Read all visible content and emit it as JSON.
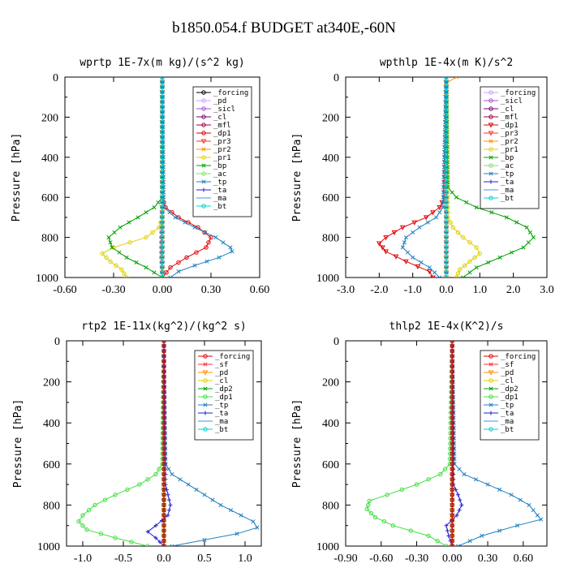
{
  "figure_title": "b1850.054.f  BUDGET at340E,-60N",
  "chart_data": [
    {
      "type": "line",
      "title": "wprtp   1E-7x(m kg)/(s^2 kg)",
      "ylabel": "Pressure [hPa]",
      "xlim": [
        -0.6,
        0.6
      ],
      "ylim": [
        1000,
        0
      ],
      "xticks": [
        "-0.60",
        "-0.30",
        "0.00",
        "0.30",
        "0.60"
      ],
      "xtick_values": [
        -0.6,
        -0.3,
        0.0,
        0.3,
        0.6
      ],
      "yticks": [
        "0",
        "200",
        "400",
        "600",
        "800",
        "1000"
      ],
      "legend": [
        "_forcing",
        "_pd",
        "_sicl",
        "_cl",
        "_mfl",
        "_dp1",
        "_pr3",
        "_pr2",
        "_pr1",
        "_bp",
        "_ac",
        "_tp",
        "_ta",
        "_ma",
        "_bt"
      ],
      "series": [
        {
          "name": "_forcing",
          "color": "#000000",
          "marker": "o",
          "p": [
            0,
            1000
          ],
          "x": [
            0,
            0
          ]
        },
        {
          "name": "_pd",
          "color": "#c8a0ff",
          "marker": "o",
          "p": [
            0,
            1000
          ],
          "x": [
            0,
            0
          ]
        },
        {
          "name": "_sicl",
          "color": "#a050d0",
          "marker": "o",
          "p": [
            0,
            600,
            700,
            800,
            900,
            1000
          ],
          "x": [
            0,
            0,
            -0.003,
            -0.005,
            -0.005,
            0
          ]
        },
        {
          "name": "_cl",
          "color": "#7a0070",
          "marker": "o",
          "p": [
            0,
            1000
          ],
          "x": [
            0,
            0
          ]
        },
        {
          "name": "_mfl",
          "color": "#a00040",
          "marker": "o",
          "p": [
            0,
            1000
          ],
          "x": [
            0,
            0
          ]
        },
        {
          "name": "_dp1",
          "color": "#e00000",
          "marker": "o",
          "p": [
            0,
            600,
            650,
            700,
            750,
            800,
            850,
            900,
            950,
            1000
          ],
          "x": [
            0,
            0,
            0.02,
            0.1,
            0.22,
            0.3,
            0.27,
            0.15,
            0.05,
            0.0
          ]
        },
        {
          "name": "_pr3",
          "color": "#ff3030",
          "marker": "v",
          "p": [
            0,
            1000
          ],
          "x": [
            0,
            0
          ]
        },
        {
          "name": "_pr2",
          "color": "#ff9000",
          "marker": "x",
          "p": [
            0,
            1000
          ],
          "x": [
            0,
            0
          ]
        },
        {
          "name": "_pr1",
          "color": "#e0d000",
          "marker": "o",
          "p": [
            0,
            700,
            750,
            800,
            850,
            880,
            920,
            960,
            1000
          ],
          "x": [
            0,
            0,
            -0.02,
            -0.1,
            -0.3,
            -0.37,
            -0.32,
            -0.25,
            -0.22
          ]
        },
        {
          "name": "_bp",
          "color": "#00a000",
          "marker": "x",
          "p": [
            0,
            600,
            650,
            700,
            750,
            800,
            850,
            900,
            950,
            1000
          ],
          "x": [
            0,
            0,
            -0.05,
            -0.15,
            -0.26,
            -0.33,
            -0.31,
            -0.22,
            -0.1,
            0.0
          ]
        },
        {
          "name": "_ac",
          "color": "#80e060",
          "marker": "o",
          "p": [
            0,
            1000
          ],
          "x": [
            0,
            0
          ]
        },
        {
          "name": "_tp",
          "color": "#2080c0",
          "marker": "x",
          "p": [
            0,
            650,
            700,
            750,
            800,
            850,
            870,
            900,
            940,
            970,
            1000
          ],
          "x": [
            0,
            0.01,
            0.08,
            0.2,
            0.33,
            0.42,
            0.43,
            0.35,
            0.2,
            0.1,
            0.05
          ]
        },
        {
          "name": "_ta",
          "color": "#2020d0",
          "marker": "+",
          "p": [
            0,
            1000
          ],
          "x": [
            0,
            0
          ]
        },
        {
          "name": "_ma",
          "color": "#4090ff",
          "marker": "-",
          "p": [
            0,
            1000
          ],
          "x": [
            0,
            0
          ]
        },
        {
          "name": "_bt",
          "color": "#00d0d0",
          "marker": "o",
          "p": [
            0,
            1000
          ],
          "x": [
            0,
            0
          ]
        }
      ]
    },
    {
      "type": "line",
      "title": "wpthlp   1E-4x(m K)/s^2",
      "ylabel": "Pressure [hPa]",
      "xlim": [
        -3.0,
        3.0
      ],
      "ylim": [
        1000,
        0
      ],
      "xticks": [
        "-3.0",
        "-2.0",
        "-1.0",
        "0.0",
        "1.0",
        "2.0",
        "3.0"
      ],
      "xtick_values": [
        -3,
        -2,
        -1,
        0,
        1,
        2,
        3
      ],
      "yticks": [
        "0",
        "200",
        "400",
        "600",
        "800",
        "1000"
      ],
      "legend": [
        "_forcing",
        "_sicl",
        "_cl",
        "_mfl",
        "_dp1",
        "_pr3",
        "_pr2",
        "_pr1",
        "_bp",
        "_ac",
        "_tp",
        "_ta",
        "_ma",
        "_bt"
      ],
      "series": [
        {
          "name": "_forcing",
          "color": "#c8a0ff",
          "marker": "o",
          "p": [
            0,
            1000
          ],
          "x": [
            0,
            0
          ]
        },
        {
          "name": "_sicl",
          "color": "#a050d0",
          "marker": "o",
          "p": [
            0,
            1000
          ],
          "x": [
            0,
            0
          ]
        },
        {
          "name": "_cl",
          "color": "#7a0070",
          "marker": "o",
          "p": [
            0,
            1000
          ],
          "x": [
            0,
            0
          ]
        },
        {
          "name": "_mfl",
          "color": "#a00040",
          "marker": "o",
          "p": [
            0,
            1000
          ],
          "x": [
            0,
            0
          ]
        },
        {
          "name": "_dp1",
          "color": "#e00000",
          "marker": "v",
          "p": [
            0,
            600,
            650,
            700,
            750,
            800,
            830,
            870,
            920,
            970,
            1000
          ],
          "x": [
            0,
            -0.05,
            -0.2,
            -0.6,
            -1.3,
            -1.8,
            -2.0,
            -1.8,
            -1.2,
            -0.5,
            -0.4
          ]
        },
        {
          "name": "_pr3",
          "color": "#ff3030",
          "marker": "v",
          "p": [
            0,
            1000
          ],
          "x": [
            0,
            0
          ]
        },
        {
          "name": "_pr2",
          "color": "#ff9000",
          "marker": "x",
          "p": [
            0,
            30,
            1000
          ],
          "x": [
            0.3,
            0,
            0
          ]
        },
        {
          "name": "_pr1",
          "color": "#e0d000",
          "marker": "o",
          "p": [
            0,
            700,
            750,
            800,
            850,
            880,
            920,
            960,
            1000
          ],
          "x": [
            0,
            0.05,
            0.2,
            0.5,
            0.9,
            1.0,
            0.7,
            0.4,
            0.3
          ]
        },
        {
          "name": "_bp",
          "color": "#00a000",
          "marker": "x",
          "p": [
            0,
            550,
            600,
            650,
            700,
            750,
            800,
            850,
            900,
            950,
            1000
          ],
          "x": [
            0,
            0.05,
            0.3,
            0.9,
            1.8,
            2.4,
            2.6,
            2.3,
            1.6,
            0.9,
            0.5
          ]
        },
        {
          "name": "_ac",
          "color": "#80e060",
          "marker": "o",
          "p": [
            0,
            1000
          ],
          "x": [
            0,
            0
          ]
        },
        {
          "name": "_tp",
          "color": "#2080c0",
          "marker": "x",
          "p": [
            0,
            650,
            700,
            750,
            800,
            850,
            900,
            950,
            1000
          ],
          "x": [
            0,
            -0.1,
            -0.3,
            -0.8,
            -1.2,
            -1.3,
            -1.0,
            -0.5,
            -0.2
          ]
        },
        {
          "name": "_ta",
          "color": "#2020d0",
          "marker": "+",
          "p": [
            0,
            1000
          ],
          "x": [
            0,
            0
          ]
        },
        {
          "name": "_ma",
          "color": "#4090ff",
          "marker": "-",
          "p": [
            0,
            1000
          ],
          "x": [
            0,
            0
          ]
        },
        {
          "name": "_bt",
          "color": "#00d0d0",
          "marker": "o",
          "p": [
            0,
            1000
          ],
          "x": [
            0,
            0
          ]
        }
      ]
    },
    {
      "type": "line",
      "title": "rtp2   1E-11x(kg^2)/(kg^2 s)",
      "ylabel": "Pressure [hPa]",
      "xlim": [
        -1.2,
        1.2
      ],
      "ylim": [
        1000,
        0
      ],
      "xticks": [
        "-1.0",
        "-0.5",
        "0.0",
        "0.5",
        "1.0"
      ],
      "xtick_values": [
        -1.0,
        -0.5,
        0.0,
        0.5,
        1.0
      ],
      "yticks": [
        "0",
        "200",
        "400",
        "600",
        "800",
        "1000"
      ],
      "legend": [
        "_forcing",
        "_sf",
        "_pd",
        "_cl",
        "_dp2",
        "_dp1",
        "_tp",
        "_ta",
        "_ma",
        "_bt"
      ],
      "series": [
        {
          "name": "_sf",
          "color": "#ff3030",
          "marker": "x",
          "p": [
            0,
            1000
          ],
          "x": [
            0,
            0
          ]
        },
        {
          "name": "_pd",
          "color": "#ff9000",
          "marker": "v",
          "p": [
            0,
            1000
          ],
          "x": [
            0,
            0
          ]
        },
        {
          "name": "_cl",
          "color": "#e0d000",
          "marker": "o",
          "p": [
            0,
            1000
          ],
          "x": [
            0,
            0
          ]
        },
        {
          "name": "_dp2",
          "color": "#00a000",
          "marker": "x",
          "p": [
            0,
            1000
          ],
          "x": [
            0,
            0
          ]
        },
        {
          "name": "_dp1",
          "color": "#40e040",
          "marker": "o",
          "p": [
            0,
            600,
            650,
            700,
            750,
            800,
            850,
            880,
            920,
            960,
            1000
          ],
          "x": [
            0,
            -0.02,
            -0.1,
            -0.3,
            -0.6,
            -0.85,
            -1.0,
            -1.05,
            -0.95,
            -0.6,
            -0.2
          ]
        },
        {
          "name": "_tp",
          "color": "#2080c0",
          "marker": "x",
          "p": [
            0,
            600,
            650,
            700,
            750,
            800,
            850,
            880,
            910,
            940,
            970,
            1000
          ],
          "x": [
            0,
            0.02,
            0.1,
            0.3,
            0.5,
            0.7,
            0.95,
            1.1,
            1.15,
            0.9,
            0.5,
            0.1
          ]
        },
        {
          "name": "_ta",
          "color": "#2020d0",
          "marker": "+",
          "p": [
            0,
            700,
            750,
            800,
            850,
            900,
            930,
            960,
            1000
          ],
          "x": [
            0,
            0.02,
            0.05,
            0.08,
            0.05,
            -0.1,
            -0.2,
            -0.1,
            0
          ]
        },
        {
          "name": "_ma",
          "color": "#4090ff",
          "marker": "-",
          "p": [
            0,
            1000
          ],
          "x": [
            0,
            0
          ]
        },
        {
          "name": "_bt",
          "color": "#00d0d0",
          "marker": "o",
          "p": [
            0,
            1000
          ],
          "x": [
            0,
            0
          ]
        },
        {
          "name": "_forcing",
          "color": "#e00000",
          "marker": "o",
          "p": [
            0,
            1000
          ],
          "x": [
            0,
            0
          ]
        }
      ]
    },
    {
      "type": "line",
      "title": "thlp2   1E-4x(K^2)/s",
      "ylabel": "Pressure [hPa]",
      "xlim": [
        -0.9,
        0.8
      ],
      "ylim": [
        1000,
        0
      ],
      "xticks": [
        "-0.90",
        "-0.60",
        "-0.30",
        "0.00",
        "0.30",
        "0.60"
      ],
      "xtick_values": [
        -0.9,
        -0.6,
        -0.3,
        0.0,
        0.3,
        0.6
      ],
      "yticks": [
        "0",
        "200",
        "400",
        "600",
        "800",
        "1000"
      ],
      "legend": [
        "_forcing",
        "_sf",
        "_pd",
        "_cl",
        "_dp2",
        "_dp1",
        "_tp",
        "_ta",
        "_ma",
        "_bt"
      ],
      "series": [
        {
          "name": "_sf",
          "color": "#ff3030",
          "marker": "x",
          "p": [
            0,
            1000
          ],
          "x": [
            0,
            0
          ]
        },
        {
          "name": "_pd",
          "color": "#ff9000",
          "marker": "v",
          "p": [
            0,
            1000
          ],
          "x": [
            0,
            0
          ]
        },
        {
          "name": "_cl",
          "color": "#e0d000",
          "marker": "o",
          "p": [
            0,
            1000
          ],
          "x": [
            0,
            0
          ]
        },
        {
          "name": "_dp2",
          "color": "#00a000",
          "marker": "x",
          "p": [
            0,
            1000
          ],
          "x": [
            0,
            0
          ]
        },
        {
          "name": "_dp1",
          "color": "#40e040",
          "marker": "o",
          "p": [
            0,
            600,
            650,
            700,
            750,
            780,
            820,
            860,
            900,
            950,
            1000
          ],
          "x": [
            0,
            -0.02,
            -0.1,
            -0.3,
            -0.55,
            -0.7,
            -0.72,
            -0.65,
            -0.5,
            -0.2,
            -0.05
          ]
        },
        {
          "name": "_tp",
          "color": "#2080c0",
          "marker": "x",
          "p": [
            0,
            600,
            650,
            700,
            750,
            800,
            850,
            870,
            900,
            950,
            1000
          ],
          "x": [
            0,
            0.02,
            0.1,
            0.3,
            0.5,
            0.65,
            0.72,
            0.75,
            0.55,
            0.25,
            0.05
          ]
        },
        {
          "name": "_ta",
          "color": "#2020d0",
          "marker": "+",
          "p": [
            0,
            700,
            750,
            800,
            850,
            900,
            950,
            1000
          ],
          "x": [
            0,
            0.01,
            0.05,
            0.08,
            0.04,
            -0.05,
            -0.03,
            0
          ]
        },
        {
          "name": "_ma",
          "color": "#4090ff",
          "marker": "-",
          "p": [
            0,
            1000
          ],
          "x": [
            0,
            0
          ]
        },
        {
          "name": "_bt",
          "color": "#00d0d0",
          "marker": "o",
          "p": [
            0,
            1000
          ],
          "x": [
            0,
            0
          ]
        },
        {
          "name": "_forcing",
          "color": "#e00000",
          "marker": "o",
          "p": [
            0,
            1000
          ],
          "x": [
            0,
            0
          ]
        }
      ]
    }
  ]
}
